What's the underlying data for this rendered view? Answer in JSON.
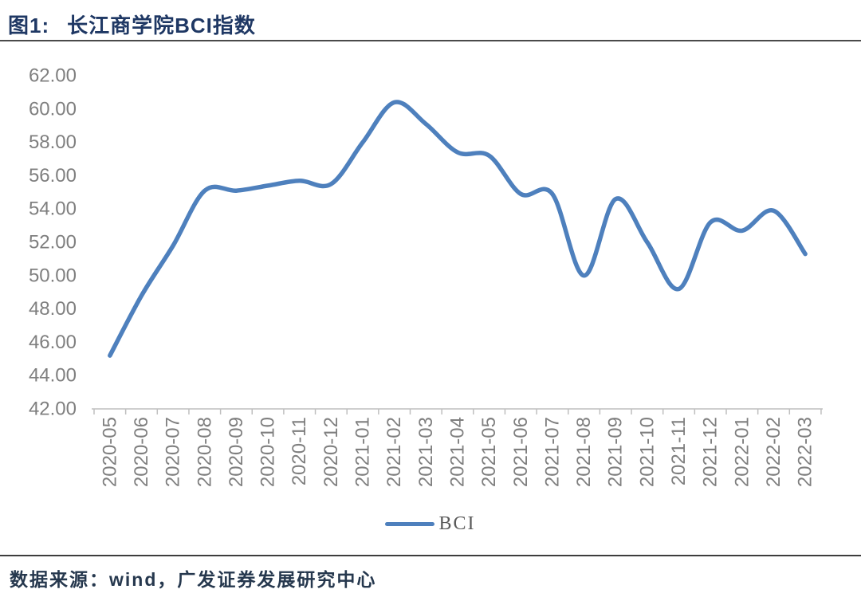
{
  "header": {
    "figure_label": "图1:",
    "title": "长江商学院BCI指数"
  },
  "legend": {
    "label": "BCI"
  },
  "footer": {
    "source_text": "数据来源：wind，广发证券发展研究中心"
  },
  "colors": {
    "line": "#4E80BD",
    "title_text": "#1F3864",
    "axis_text": "#7F7F7F",
    "axis_line": "#BFBFBF",
    "rule": "#404040",
    "legend_text": "#595959",
    "footer_text": "#26384E"
  },
  "chart_data": {
    "type": "line",
    "title": "长江商学院BCI指数",
    "categories": [
      "2020-05",
      "2020-06",
      "2020-07",
      "2020-08",
      "2020-09",
      "2020-10",
      "2020-11",
      "2020-12",
      "2021-01",
      "2021-02",
      "2021-03",
      "2021-04",
      "2021-05",
      "2021-06",
      "2021-07",
      "2021-08",
      "2021-09",
      "2021-10",
      "2021-11",
      "2021-12",
      "2022-01",
      "2022-02",
      "2022-03"
    ],
    "series": [
      {
        "name": "BCI",
        "values": [
          45.2,
          48.8,
          51.8,
          55.1,
          55.1,
          55.4,
          55.7,
          55.5,
          58.0,
          60.4,
          59.1,
          57.4,
          57.2,
          54.9,
          54.9,
          50.0,
          54.6,
          52.0,
          49.2,
          53.2,
          52.7,
          53.9,
          51.3
        ]
      }
    ],
    "ylim": [
      42,
      62
    ],
    "ytick_step": 2,
    "ytick_labels": [
      "62.00",
      "60.00",
      "58.00",
      "56.00",
      "54.00",
      "52.00",
      "50.00",
      "48.00",
      "46.00",
      "44.00",
      "42.00"
    ],
    "xlabel": "",
    "ylabel": "",
    "grid": false,
    "smooth": true,
    "legend_position": "bottom",
    "x_labels_rotated": true
  }
}
